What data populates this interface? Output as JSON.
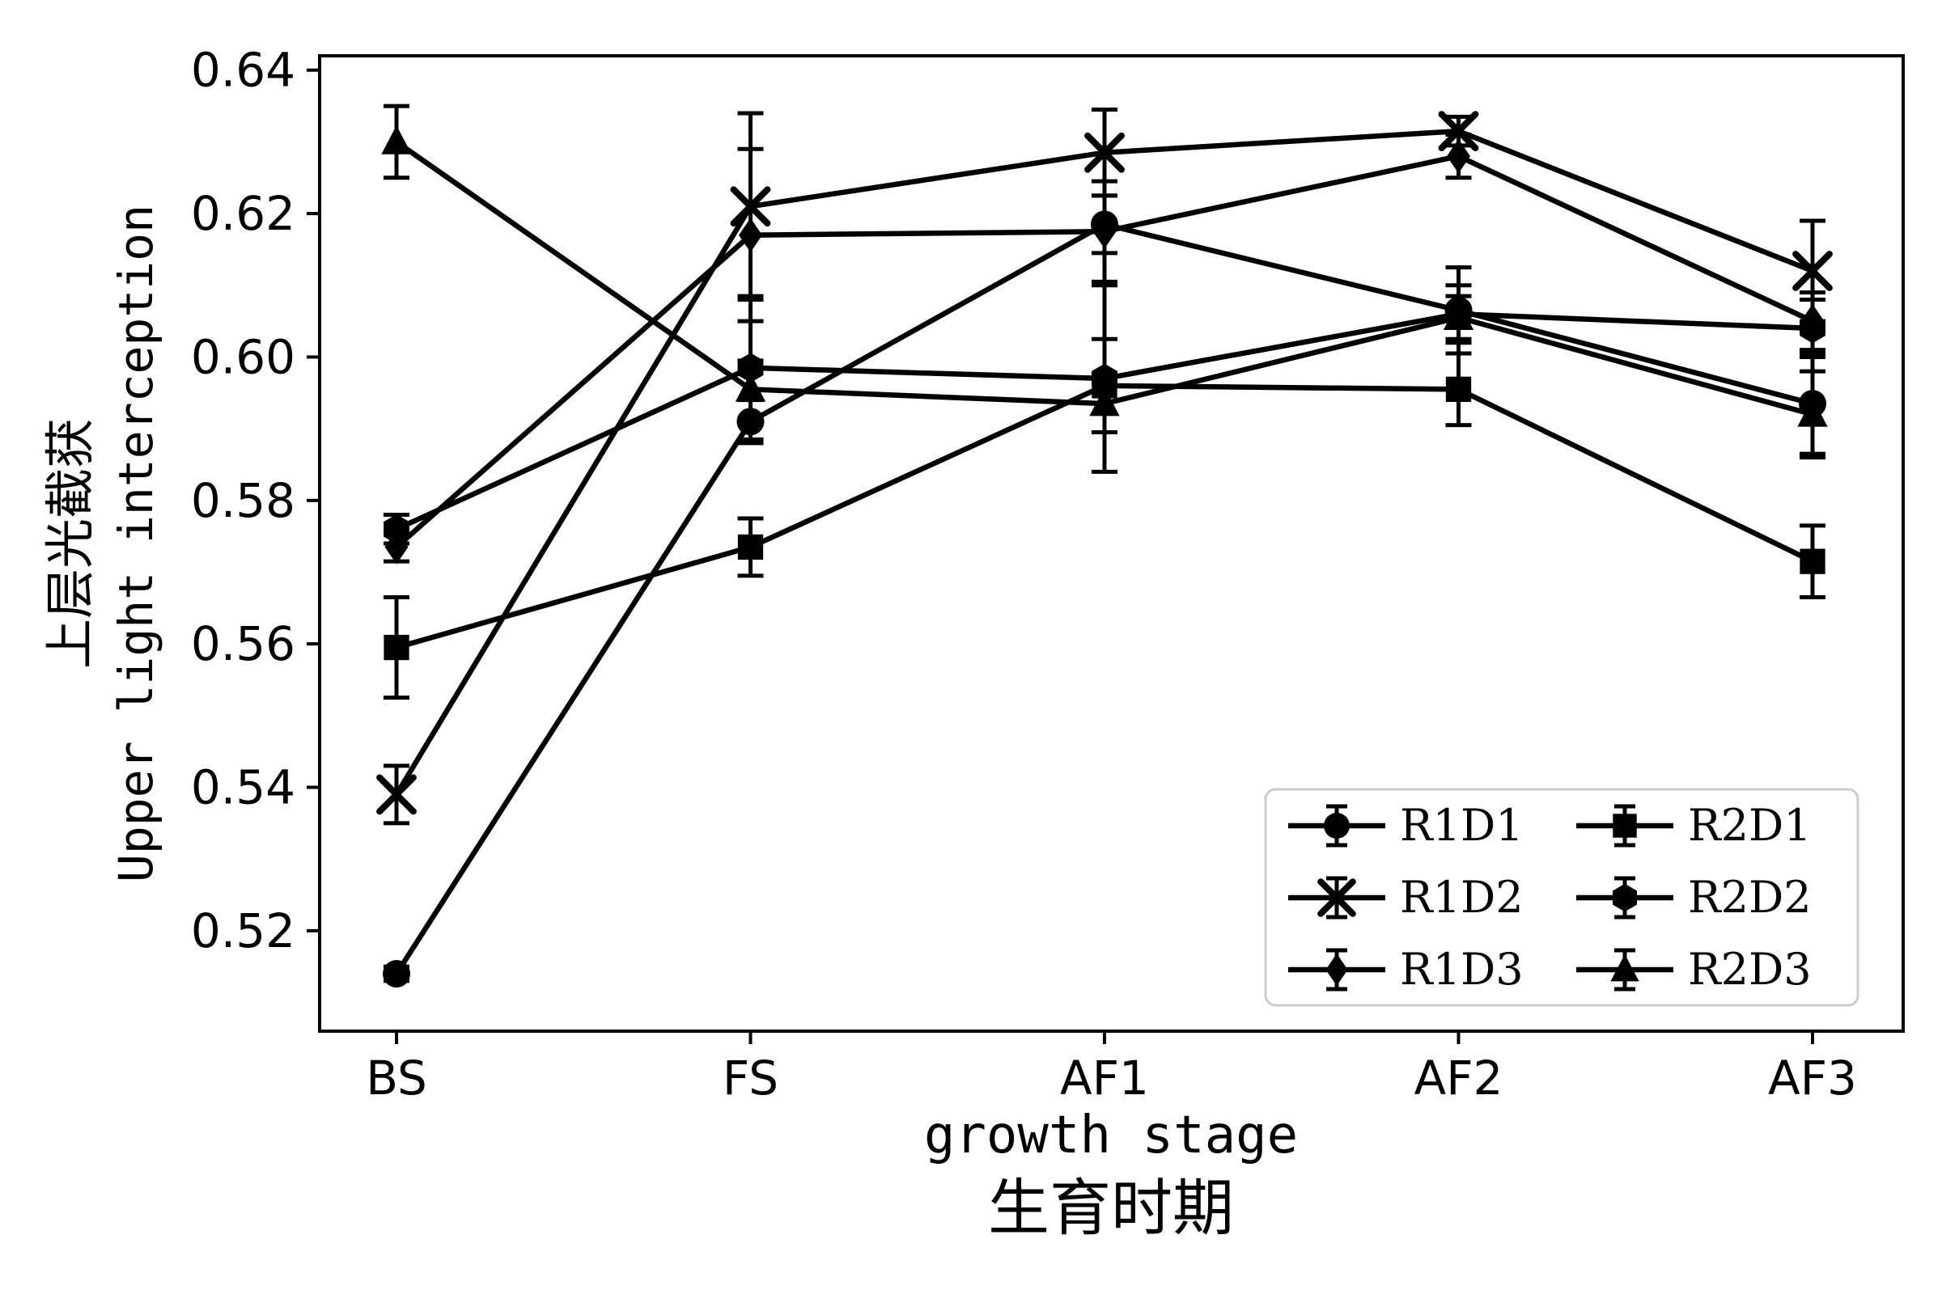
{
  "figure": {
    "ylabel_zh": "上层光截获",
    "ylabel_en": "Upper light interception",
    "xlabel_en": "growth stage",
    "xlabel_zh": "生育时期"
  },
  "chart_data": {
    "type": "line",
    "title": "",
    "xlabel": "growth stage 生育时期",
    "ylabel": "上层光截获 Upper light interception",
    "categories": [
      "BS",
      "FS",
      "AF1",
      "AF2",
      "AF3"
    ],
    "ylim": [
      0.506,
      0.642
    ],
    "yticks": [
      0.52,
      0.54,
      0.56,
      0.58,
      0.6,
      0.62,
      0.64
    ],
    "grid": false,
    "legend_position": "lower right",
    "line_color": "#000000",
    "background_color": "#ffffff",
    "series": [
      {
        "name": "R1D1",
        "marker": "circle",
        "values": [
          0.514,
          0.591,
          0.6185,
          0.6065,
          0.5935
        ],
        "errors": [
          0.001,
          0.003,
          0.004,
          0.006,
          0.007
        ]
      },
      {
        "name": "R1D2",
        "marker": "x",
        "values": [
          0.539,
          0.621,
          0.6285,
          0.6315,
          0.612
        ],
        "errors": [
          0.004,
          0.013,
          0.006,
          0.002,
          0.007
        ]
      },
      {
        "name": "R1D3",
        "marker": "diamond",
        "values": [
          0.5735,
          0.617,
          0.6175,
          0.628,
          0.605
        ],
        "errors": [
          0.002,
          0.012,
          0.007,
          0.003,
          0.004
        ]
      },
      {
        "name": "R2D1",
        "marker": "square",
        "values": [
          0.5595,
          0.5735,
          0.596,
          0.5955,
          0.5715
        ],
        "errors": [
          0.007,
          0.004,
          0.0065,
          0.005,
          0.005
        ]
      },
      {
        "name": "R2D2",
        "marker": "hexagon",
        "values": [
          0.576,
          0.5985,
          0.597,
          0.606,
          0.604
        ],
        "errors": [
          0.002,
          0.01,
          0.013,
          0.004,
          0.004
        ]
      },
      {
        "name": "R2D3",
        "marker": "triangle",
        "values": [
          0.63,
          0.5955,
          0.5935,
          0.6055,
          0.592
        ],
        "errors": [
          0.005,
          0.004,
          0.004,
          0.003,
          0.006
        ]
      }
    ]
  }
}
